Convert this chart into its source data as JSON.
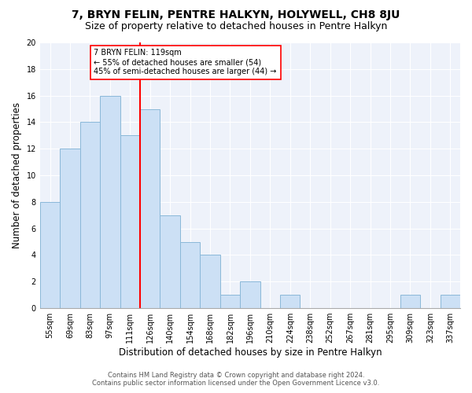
{
  "title": "7, BRYN FELIN, PENTRE HALKYN, HOLYWELL, CH8 8JU",
  "subtitle": "Size of property relative to detached houses in Pentre Halkyn",
  "xlabel": "Distribution of detached houses by size in Pentre Halkyn",
  "ylabel": "Number of detached properties",
  "bin_labels": [
    "55sqm",
    "69sqm",
    "83sqm",
    "97sqm",
    "111sqm",
    "126sqm",
    "140sqm",
    "154sqm",
    "168sqm",
    "182sqm",
    "196sqm",
    "210sqm",
    "224sqm",
    "238sqm",
    "252sqm",
    "267sqm",
    "281sqm",
    "295sqm",
    "309sqm",
    "323sqm",
    "337sqm"
  ],
  "bar_values": [
    8,
    12,
    14,
    16,
    13,
    15,
    7,
    5,
    4,
    1,
    2,
    0,
    1,
    0,
    0,
    0,
    0,
    0,
    1,
    0,
    1
  ],
  "bar_color": "#cce0f5",
  "bar_edge_color": "#8ab8d8",
  "vline_x": 4.5,
  "vline_color": "red",
  "annotation_title": "7 BRYN FELIN: 119sqm",
  "annotation_line1": "← 55% of detached houses are smaller (54)",
  "annotation_line2": "45% of semi-detached houses are larger (44) →",
  "annotation_box_color": "white",
  "annotation_box_edge_color": "red",
  "footer_line1": "Contains HM Land Registry data © Crown copyright and database right 2024.",
  "footer_line2": "Contains public sector information licensed under the Open Government Licence v3.0.",
  "ylim": [
    0,
    20
  ],
  "yticks": [
    0,
    2,
    4,
    6,
    8,
    10,
    12,
    14,
    16,
    18,
    20
  ],
  "background_color": "#eef2fa",
  "grid_color": "#ffffff",
  "title_fontsize": 10,
  "subtitle_fontsize": 9,
  "ylabel_fontsize": 8.5,
  "xlabel_fontsize": 8.5,
  "tick_fontsize": 7,
  "annotation_fontsize": 7,
  "footer_fontsize": 6
}
